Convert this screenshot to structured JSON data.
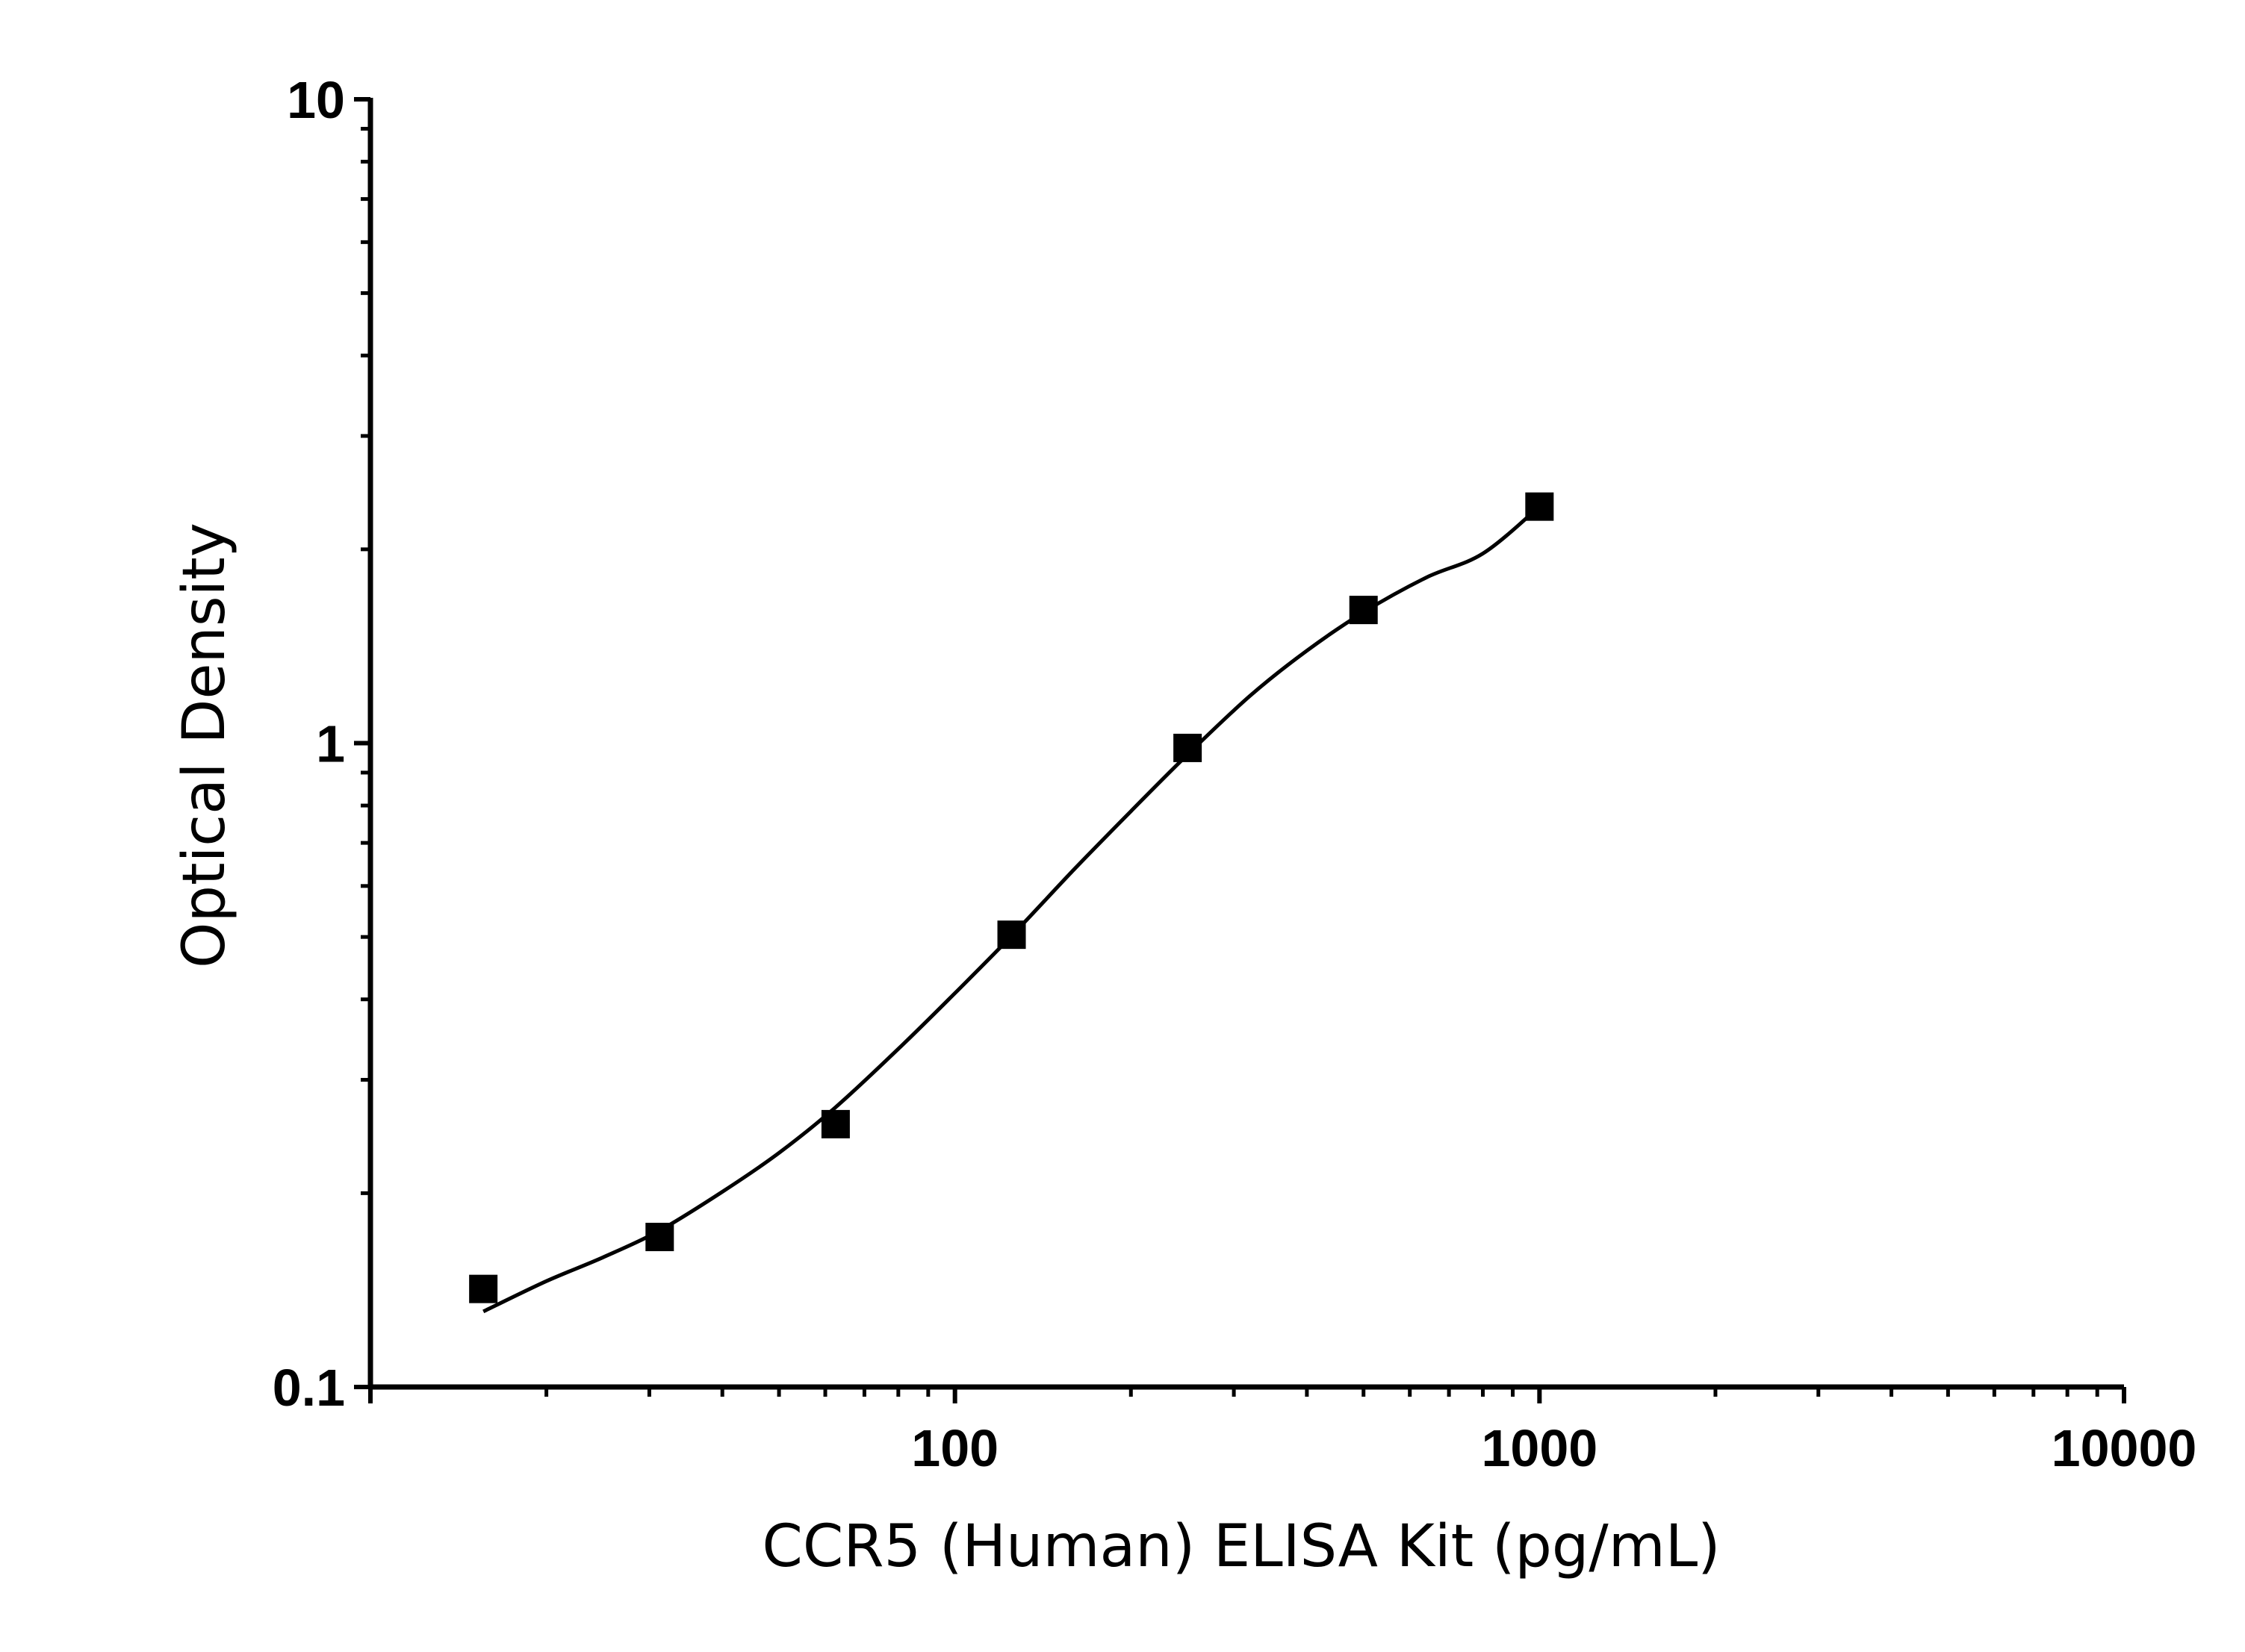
{
  "chart_data": {
    "type": "scatter",
    "title": "",
    "xlabel": "CCR5 (Human) ELISA Kit (pg/mL)",
    "ylabel": "Optical Density",
    "x_scale": "log",
    "y_scale": "log",
    "xlim": [
      10,
      10000
    ],
    "ylim": [
      0.1,
      10
    ],
    "x_ticks": [
      "100",
      "1000",
      "10000"
    ],
    "y_ticks": [
      "0.1",
      "1",
      "10"
    ],
    "grid": false,
    "legend": "none",
    "marker_color": "#000000",
    "series": [
      {
        "marker": "square",
        "x": [
          15.6,
          31.25,
          62.5,
          125,
          250,
          500,
          1000
        ],
        "y": [
          0.142,
          0.171,
          0.256,
          0.504,
          0.983,
          1.61,
          2.33
        ]
      }
    ],
    "fit_curve": {
      "type": "4PL",
      "color": "#000000",
      "x": [
        15.6,
        20,
        25,
        31.25,
        40,
        50,
        62.5,
        80,
        100,
        125,
        160,
        200,
        250,
        320,
        400,
        500,
        640,
        800,
        1000
      ],
      "y": [
        0.131,
        0.146,
        0.159,
        0.175,
        0.201,
        0.231,
        0.272,
        0.335,
        0.409,
        0.502,
        0.637,
        0.784,
        0.96,
        1.185,
        1.392,
        1.597,
        1.808,
        1.97,
        2.33
      ]
    }
  }
}
